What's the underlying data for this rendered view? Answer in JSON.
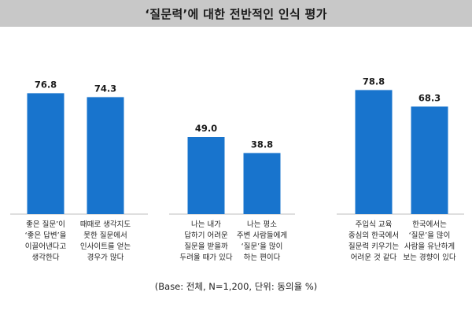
{
  "header": {
    "title": "‘질문력’에 대한 전반적인 인식 평가"
  },
  "footnote": "(Base: 전체, N=1,200, 단위: 동의율 %)",
  "colors": {
    "bar": "#1874cd",
    "axis": "#bfbfbf",
    "title_bg": "#c8c8c8"
  },
  "chart_data": {
    "type": "bar",
    "title": "‘질문력’에 대한 전반적인 인식 평가",
    "unit": "%",
    "categories": [
      "좋은 질문’이\n‘좋은 답변’을\n이끌어낸다고\n생각한다",
      "때때로 생각지도\n못한 질문에서\n인사이트를 얻는\n경우가 많다",
      "나는 내가\n답하기 어려운\n질문을 받을까\n두려울 때가 있다",
      "나는 평소\n주변 사람들에게\n‘질문’을 많이\n하는 편이다",
      "주입식 교육\n중심의 한국에서\n질문력 키우기는\n어려운 것 같다",
      "한국에서는\n‘질문’을 많이\n사람을 유난하게\n보는 경향이 있다"
    ],
    "values": [
      76.8,
      74.3,
      49.0,
      38.8,
      78.8,
      68.3
    ],
    "groups": [
      [
        0,
        1
      ],
      [
        2,
        3
      ],
      [
        4,
        5
      ]
    ],
    "ylim": [
      0,
      100
    ],
    "grid": false
  }
}
